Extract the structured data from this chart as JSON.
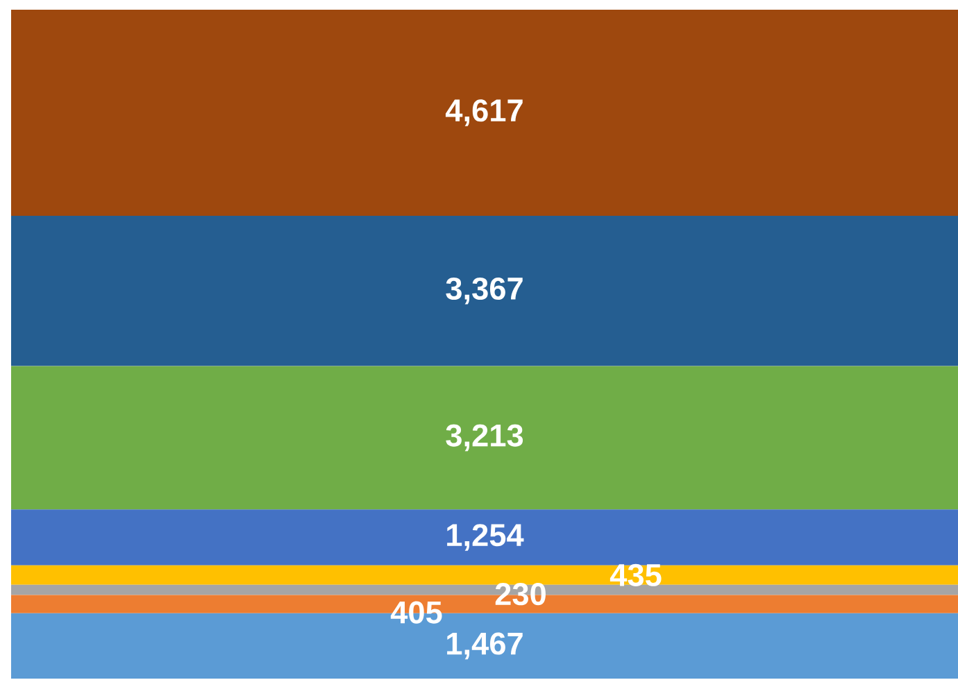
{
  "chart_data": {
    "type": "bar",
    "stacked": true,
    "categories": [
      null
    ],
    "series": [
      {
        "color": "#5b9bd5",
        "values": [
          1467
        ],
        "value_labels": [
          "1,467"
        ]
      },
      {
        "color": "#ed7d31",
        "values": [
          405
        ],
        "value_labels": [
          "405"
        ]
      },
      {
        "color": "#a5a5a5",
        "values": [
          230
        ],
        "value_labels": [
          "230"
        ]
      },
      {
        "color": "#ffc000",
        "values": [
          435
        ],
        "value_labels": [
          "435"
        ]
      },
      {
        "color": "#4472c4",
        "values": [
          1254
        ],
        "value_labels": [
          "1,254"
        ]
      },
      {
        "color": "#70ad47",
        "values": [
          3213
        ],
        "value_labels": [
          "3,213"
        ]
      },
      {
        "color": "#255e91",
        "values": [
          3367
        ],
        "value_labels": [
          "3,367"
        ]
      },
      {
        "color": "#9e480e",
        "values": [
          4617
        ],
        "value_labels": [
          "4,617"
        ]
      }
    ]
  }
}
